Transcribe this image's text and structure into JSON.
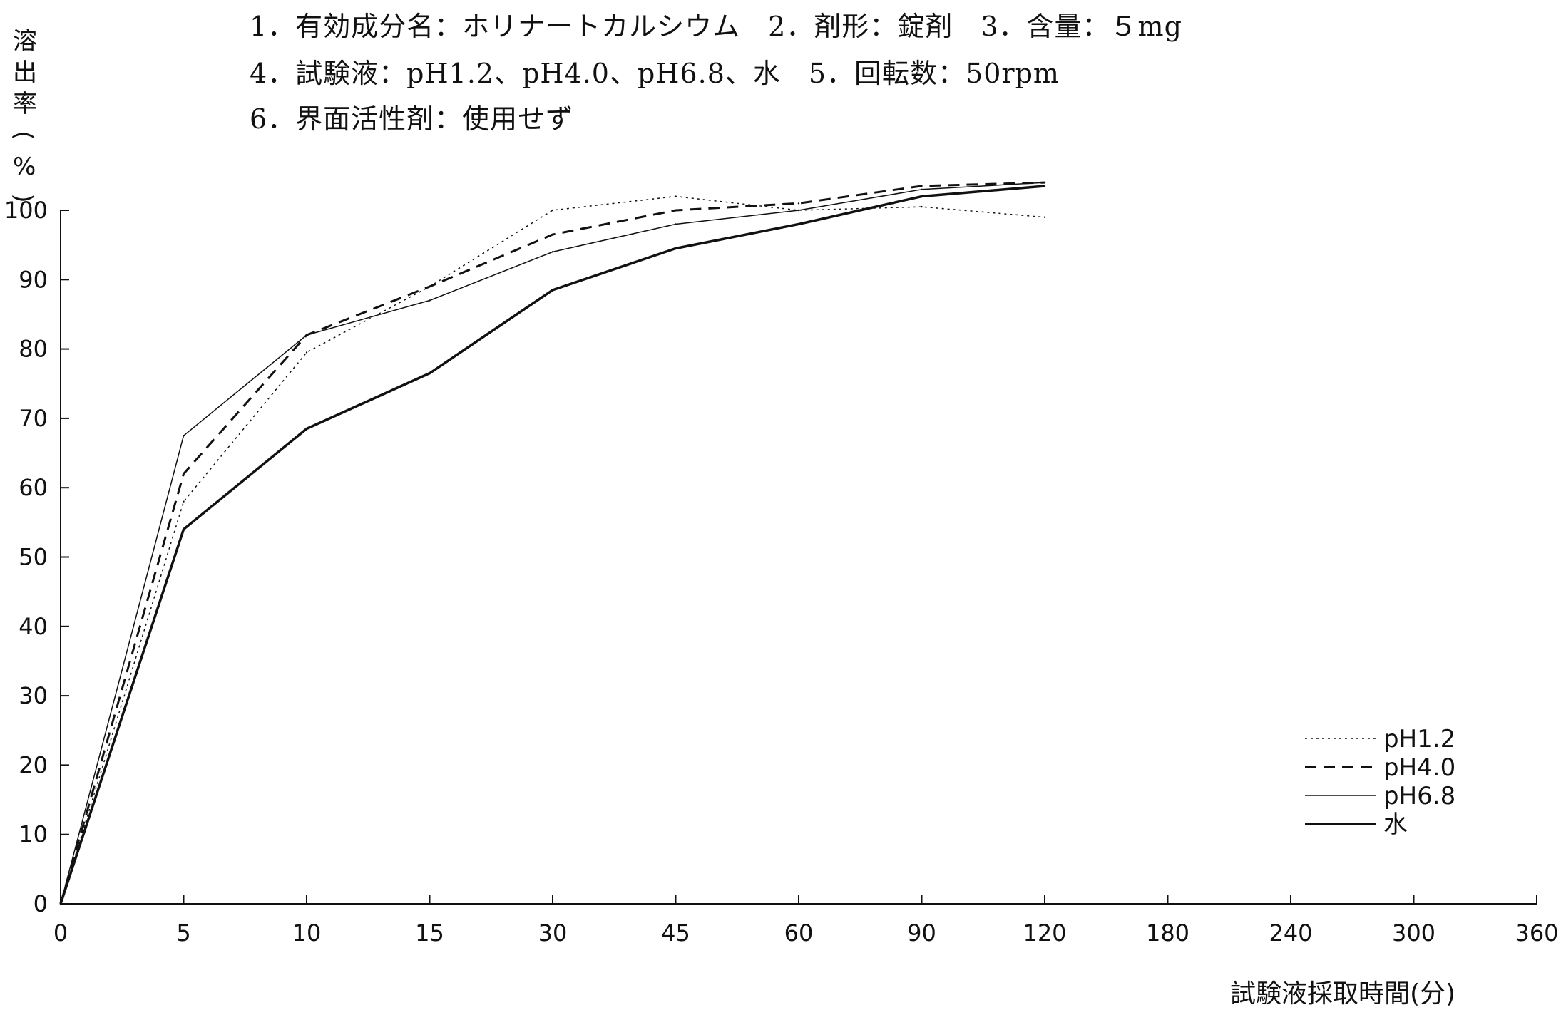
{
  "header": {
    "line1": "1．有効成分名：ホリナートカルシウム　2．剤形：錠剤　3．含量：５mg",
    "line2": "4．試験液：pH1.2、pH4.0、pH6.8、水　5．回転数：50rpm",
    "line3": "6．界面活性剤：使用せず"
  },
  "chart_data": {
    "type": "line",
    "title": "",
    "xlabel": "試験液採取時間(分)",
    "ylabel": "溶出率(%)",
    "x_categories": [
      "0",
      "5",
      "10",
      "15",
      "30",
      "45",
      "60",
      "90",
      "120",
      "180",
      "240",
      "300",
      "360"
    ],
    "ylim": [
      0,
      100
    ],
    "y_ticks": [
      "0",
      "10",
      "20",
      "30",
      "40",
      "50",
      "60",
      "70",
      "80",
      "90",
      "100"
    ],
    "grid": false,
    "legend_position": "bottom-right",
    "series": [
      {
        "name": "pH1.2",
        "style": "dotted",
        "values": [
          0,
          58,
          79.5,
          89,
          100,
          102,
          100,
          100.5,
          99
        ]
      },
      {
        "name": "pH4.0",
        "style": "dashed",
        "values": [
          0,
          62,
          82,
          89,
          96.5,
          100,
          101,
          103.5,
          104
        ]
      },
      {
        "name": "pH6.8",
        "style": "thin",
        "values": [
          0,
          67.5,
          82,
          87,
          94,
          98,
          100,
          103,
          104
        ]
      },
      {
        "name": "水",
        "style": "thick",
        "values": [
          0,
          54,
          68.5,
          76.5,
          88.5,
          94.5,
          98,
          102,
          103.5
        ]
      }
    ]
  }
}
